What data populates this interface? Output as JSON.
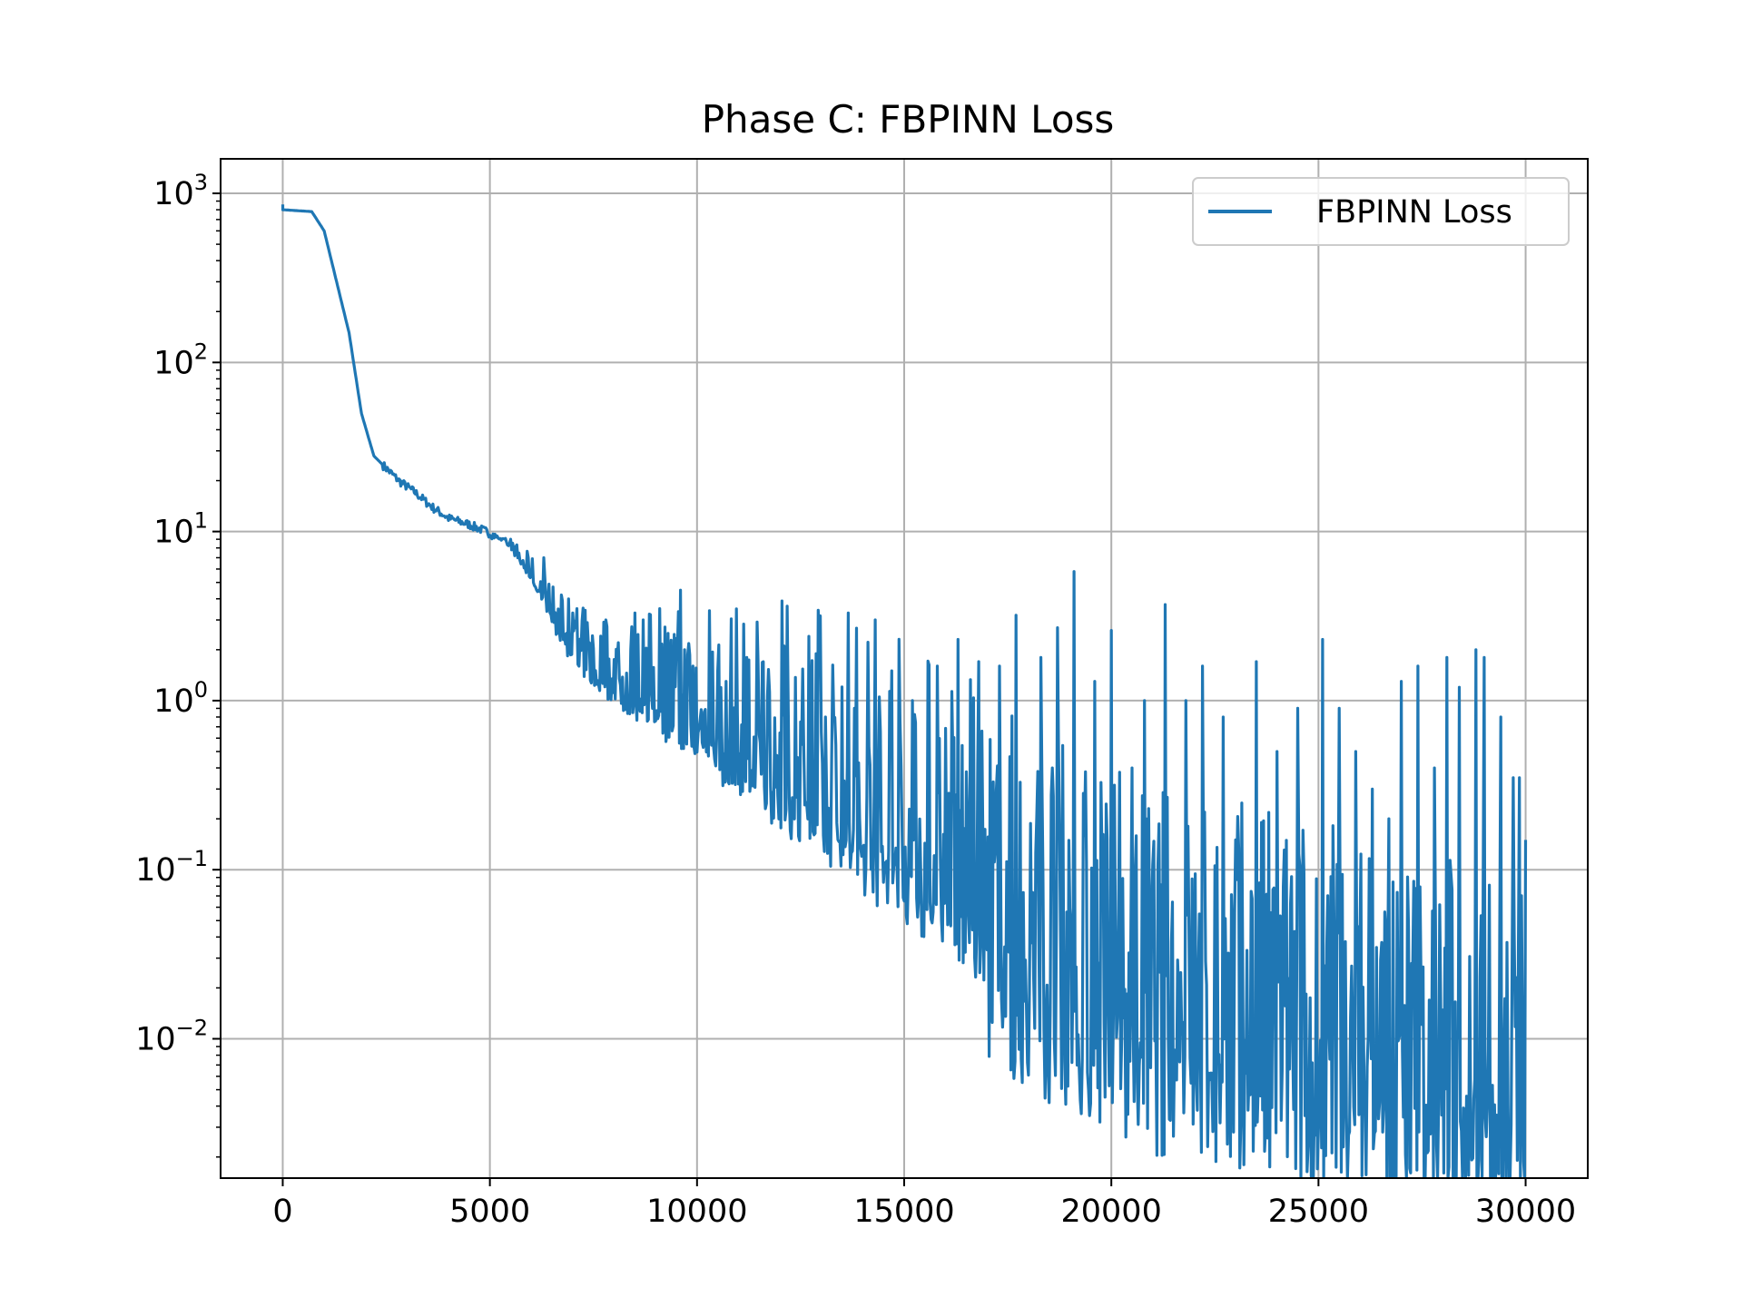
{
  "chart_data": {
    "type": "line",
    "title": "Phase C: FBPINN Loss",
    "xlabel": "",
    "ylabel": "",
    "xlim": [
      -1500,
      31500
    ],
    "ylim": [
      0.0015,
      1600
    ],
    "yscale": "log",
    "grid": true,
    "legend_position": "top-right",
    "x_ticks": [
      0,
      5000,
      10000,
      15000,
      20000,
      25000,
      30000
    ],
    "y_ticks": [
      {
        "value": 0.01,
        "base": "10",
        "exp": "−2"
      },
      {
        "value": 0.1,
        "base": "10",
        "exp": "−1"
      },
      {
        "value": 1,
        "base": "10",
        "exp": "0"
      },
      {
        "value": 10,
        "base": "10",
        "exp": "1"
      },
      {
        "value": 100,
        "base": "10",
        "exp": "2"
      },
      {
        "value": 1000,
        "base": "10",
        "exp": "3"
      }
    ],
    "series": [
      {
        "name": "FBPINN Loss",
        "color": "#1f77b4",
        "trend": {
          "x": [
            0,
            700,
            1000,
            1300,
            1600,
            1900,
            2200,
            2400,
            2800,
            3200,
            3600,
            4000,
            4500,
            5000,
            5400,
            5800,
            6200,
            6600,
            7000,
            7500,
            8000,
            9000,
            10000,
            11000,
            12000,
            13000,
            14000,
            15000,
            16000,
            17000,
            18000,
            19000,
            20000,
            21000,
            22000,
            23000,
            24000,
            25000,
            26000,
            27000,
            28000,
            29000,
            30000
          ],
          "y": [
            800,
            780,
            600,
            300,
            150,
            50,
            28,
            25,
            20,
            17,
            14,
            12,
            11,
            9.8,
            8.5,
            6.5,
            4.5,
            2.8,
            1.9,
            1.5,
            1.2,
            0.9,
            0.65,
            0.45,
            0.32,
            0.23,
            0.16,
            0.1,
            0.07,
            0.045,
            0.03,
            0.02,
            0.015,
            0.012,
            0.011,
            0.01,
            0.009,
            0.008,
            0.007,
            0.006,
            0.005,
            0.0045,
            0.004
          ]
        },
        "spikes": [
          {
            "x": 5500,
            "y": 9.0
          },
          {
            "x": 6300,
            "y": 7.0
          },
          {
            "x": 6900,
            "y": 4.0
          },
          {
            "x": 7100,
            "y": 3.5
          },
          {
            "x": 7400,
            "y": 2.2
          },
          {
            "x": 7800,
            "y": 3.0
          },
          {
            "x": 8100,
            "y": 2.2
          },
          {
            "x": 8500,
            "y": 3.3
          },
          {
            "x": 8700,
            "y": 3.0
          },
          {
            "x": 9100,
            "y": 3.5
          },
          {
            "x": 9300,
            "y": 2.5
          },
          {
            "x": 9600,
            "y": 4.5
          },
          {
            "x": 9900,
            "y": 1.6
          },
          {
            "x": 10300,
            "y": 3.4
          },
          {
            "x": 10700,
            "y": 1.3
          },
          {
            "x": 11200,
            "y": 1.8
          },
          {
            "x": 11600,
            "y": 1.7
          },
          {
            "x": 12200,
            "y": 1.0
          },
          {
            "x": 12700,
            "y": 2.4
          },
          {
            "x": 13300,
            "y": 0.8
          },
          {
            "x": 13800,
            "y": 0.9
          },
          {
            "x": 14300,
            "y": 3.0
          },
          {
            "x": 14700,
            "y": 1.5
          },
          {
            "x": 15200,
            "y": 1.0
          },
          {
            "x": 15800,
            "y": 1.6
          },
          {
            "x": 16300,
            "y": 2.3
          },
          {
            "x": 16800,
            "y": 1.7
          },
          {
            "x": 17300,
            "y": 1.6
          },
          {
            "x": 17700,
            "y": 3.2
          },
          {
            "x": 18300,
            "y": 1.8
          },
          {
            "x": 18700,
            "y": 2.7
          },
          {
            "x": 19100,
            "y": 5.8
          },
          {
            "x": 19600,
            "y": 1.3
          },
          {
            "x": 20000,
            "y": 2.6
          },
          {
            "x": 20500,
            "y": 0.4
          },
          {
            "x": 20800,
            "y": 1.0
          },
          {
            "x": 21300,
            "y": 3.7
          },
          {
            "x": 21800,
            "y": 1.0
          },
          {
            "x": 22200,
            "y": 1.6
          },
          {
            "x": 22700,
            "y": 0.8
          },
          {
            "x": 23000,
            "y": 0.15
          },
          {
            "x": 23500,
            "y": 1.7
          },
          {
            "x": 24000,
            "y": 0.5
          },
          {
            "x": 24500,
            "y": 0.9
          },
          {
            "x": 25100,
            "y": 2.3
          },
          {
            "x": 25500,
            "y": 0.9
          },
          {
            "x": 25900,
            "y": 0.5
          },
          {
            "x": 26300,
            "y": 0.3
          },
          {
            "x": 26700,
            "y": 0.2
          },
          {
            "x": 27000,
            "y": 1.3
          },
          {
            "x": 27400,
            "y": 1.6
          },
          {
            "x": 27800,
            "y": 0.4
          },
          {
            "x": 28100,
            "y": 1.8
          },
          {
            "x": 28400,
            "y": 1.2
          },
          {
            "x": 28800,
            "y": 2.0
          },
          {
            "x": 29000,
            "y": 1.8
          },
          {
            "x": 29400,
            "y": 0.8
          },
          {
            "x": 29700,
            "y": 0.35
          },
          {
            "x": 29850,
            "y": 0.35
          },
          {
            "x": 30000,
            "y": 0.15
          }
        ]
      }
    ]
  }
}
